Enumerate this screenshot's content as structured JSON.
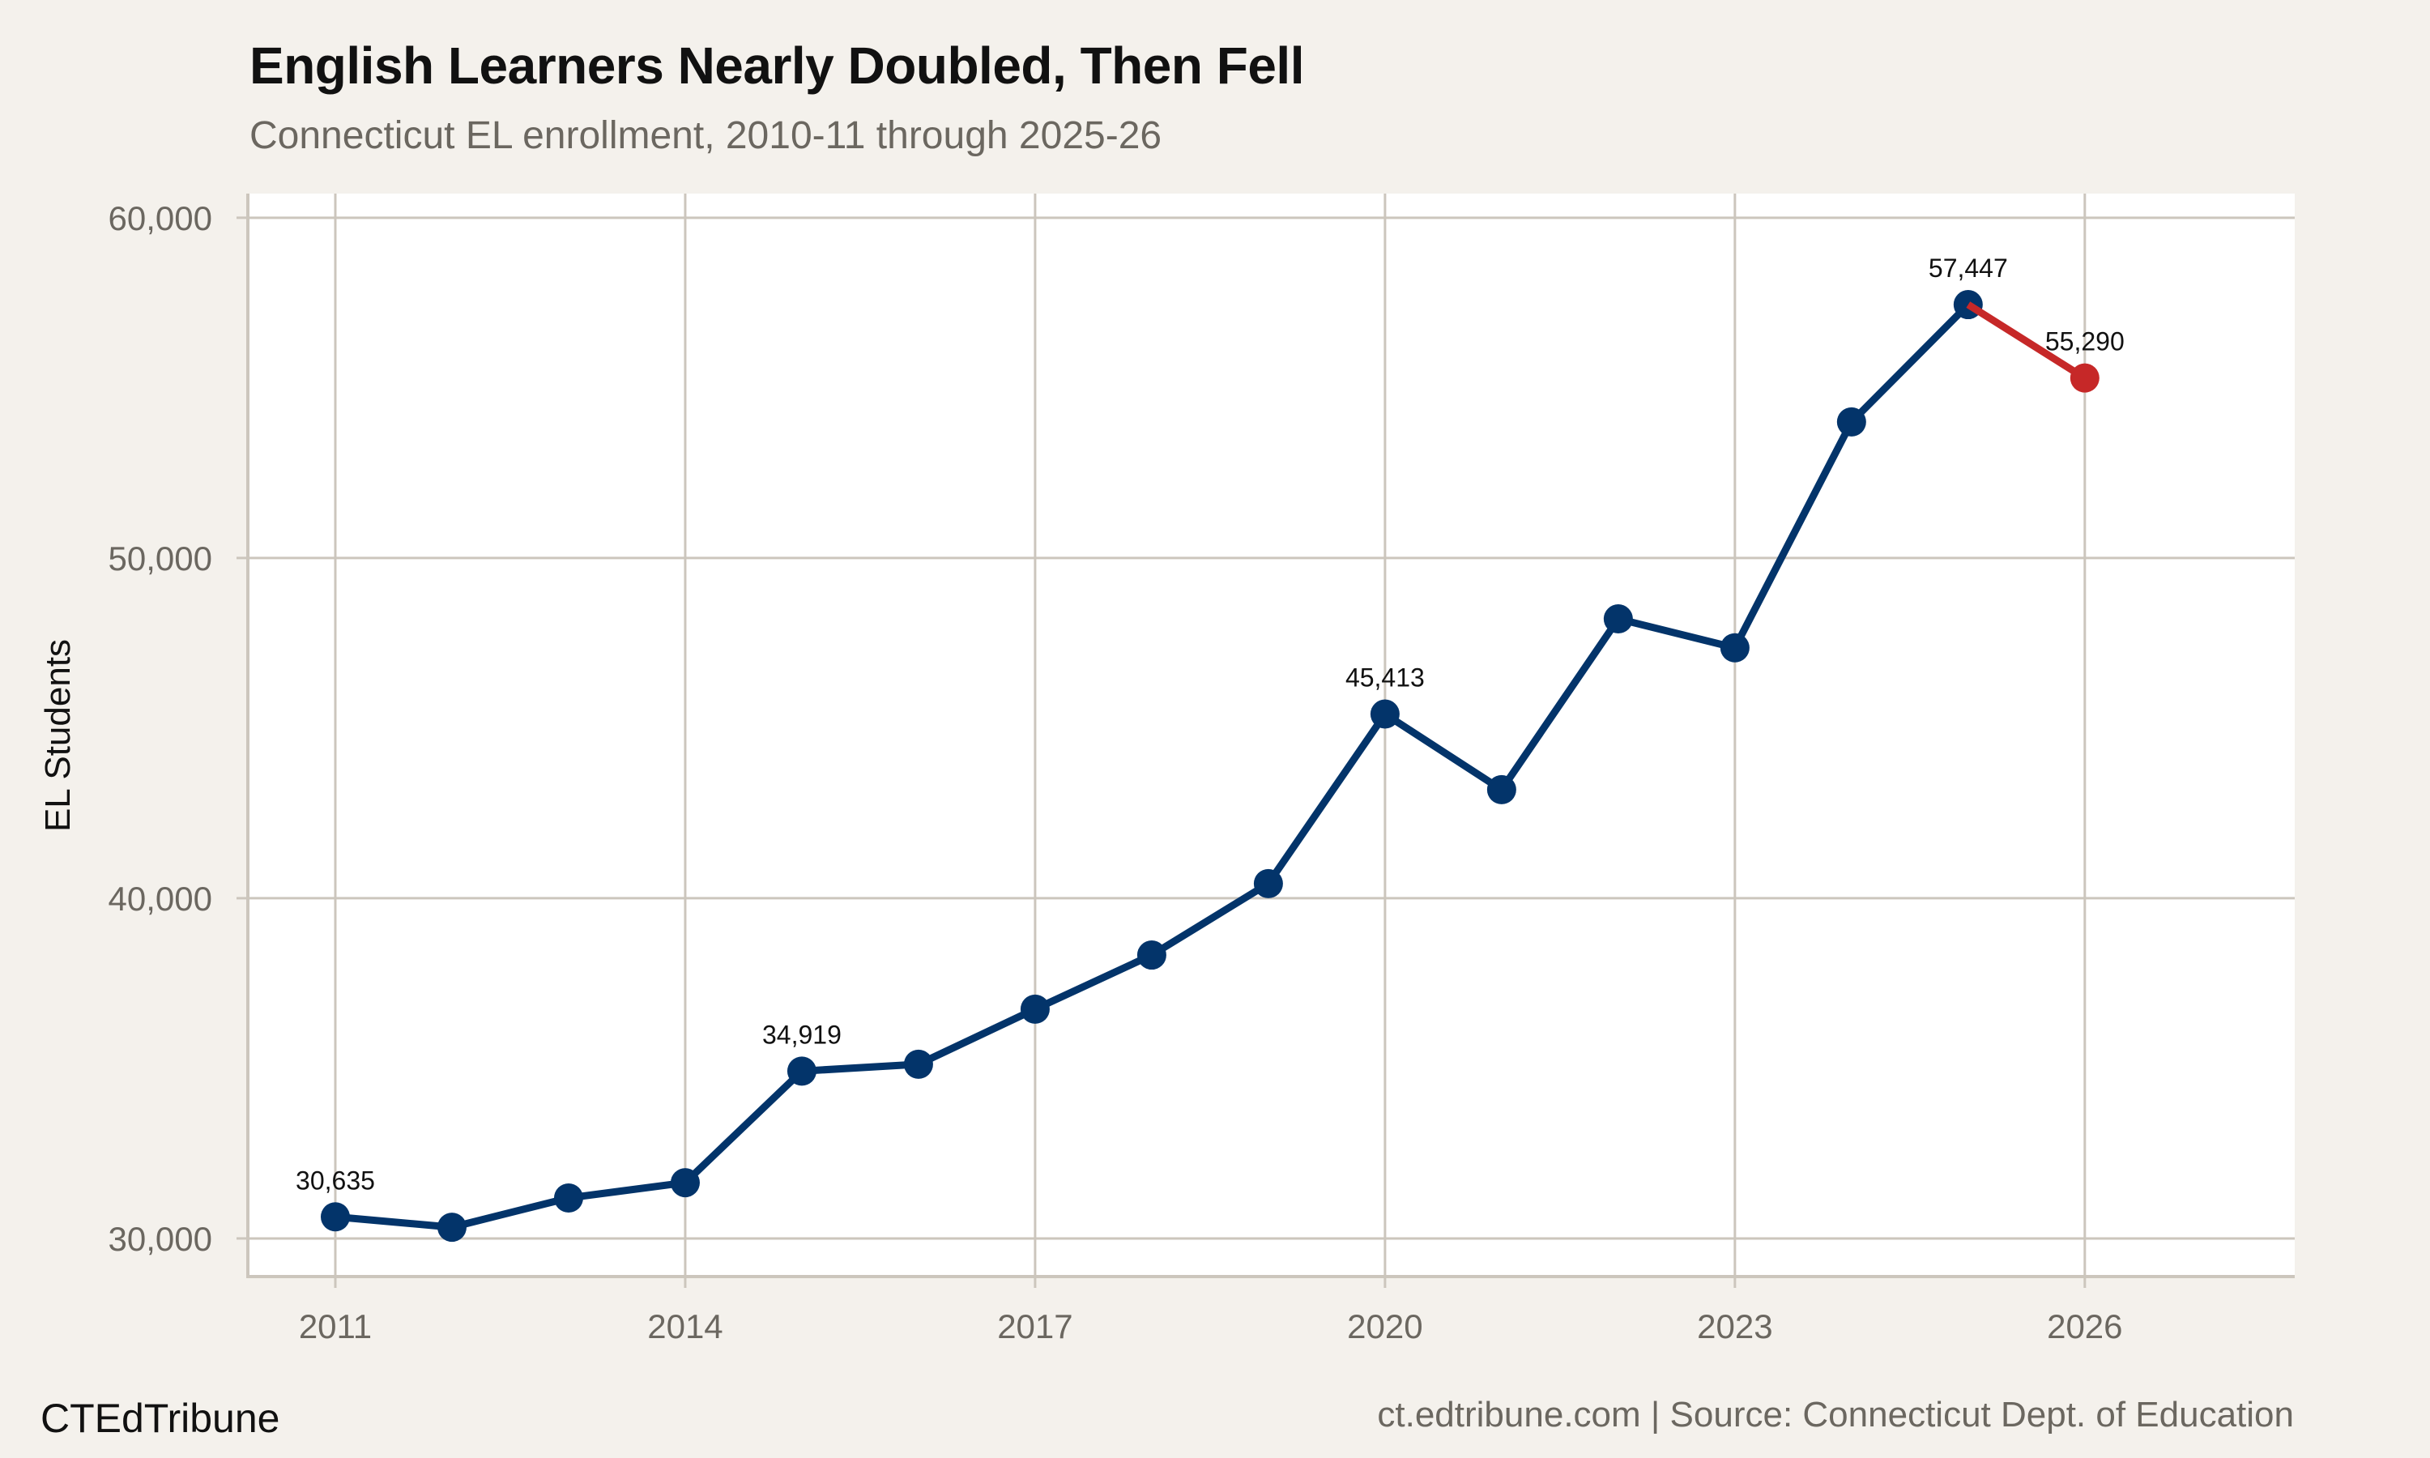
{
  "header": {
    "title": "English Learners Nearly Doubled, Then Fell",
    "subtitle": "Connecticut EL enrollment, 2010-11 through 2025-26"
  },
  "axes": {
    "ylabel": "EL Students",
    "yticks": [
      "30,000",
      "40,000",
      "50,000",
      "60,000"
    ],
    "xticks": [
      "2011",
      "2014",
      "2017",
      "2020",
      "2023",
      "2026"
    ]
  },
  "footer": {
    "brand": "CTEdTribune",
    "source": "ct.edtribune.com | Source: Connecticut Dept. of Education"
  },
  "colors": {
    "background": "#F4F1EC",
    "plot_background": "#FFFFFF",
    "grid": "#CCC6BD",
    "main_series": "#03346A",
    "decline_series": "#C62828",
    "muted_text": "#6B6760"
  },
  "chart_data": {
    "type": "line",
    "title": "English Learners Nearly Doubled, Then Fell",
    "subtitle": "Connecticut EL enrollment, 2010-11 through 2025-26",
    "xlabel": "",
    "ylabel": "EL Students",
    "x": [
      2011,
      2012,
      2013,
      2014,
      2015,
      2016,
      2017,
      2018,
      2019,
      2020,
      2021,
      2022,
      2023,
      2024,
      2025,
      2026
    ],
    "series": [
      {
        "name": "EL enrollment",
        "color": "#03346A",
        "x": [
          2011,
          2012,
          2013,
          2014,
          2015,
          2016,
          2017,
          2018,
          2019,
          2020,
          2021,
          2022,
          2023,
          2024,
          2025
        ],
        "values": [
          30635,
          30330,
          31190,
          31640,
          34919,
          35120,
          36740,
          38330,
          40430,
          45413,
          43190,
          48210,
          47360,
          54000,
          57447
        ]
      },
      {
        "name": "Decline",
        "color": "#C62828",
        "x": [
          2025,
          2026
        ],
        "values": [
          57447,
          55290
        ]
      }
    ],
    "annotations": [
      {
        "x": 2011,
        "y": 30635,
        "label": "30,635"
      },
      {
        "x": 2015,
        "y": 34919,
        "label": "34,919"
      },
      {
        "x": 2020,
        "y": 45413,
        "label": "45,413"
      },
      {
        "x": 2025,
        "y": 57447,
        "label": "57,447"
      },
      {
        "x": 2026,
        "y": 55290,
        "label": "55,290"
      }
    ],
    "xticks": [
      2011,
      2014,
      2017,
      2020,
      2023,
      2026
    ],
    "yticks": [
      30000,
      40000,
      50000,
      60000
    ],
    "xlim": [
      2010.25,
      2027.8
    ],
    "ylim": [
      28880,
      60710
    ],
    "grid": true,
    "legend": "none"
  }
}
